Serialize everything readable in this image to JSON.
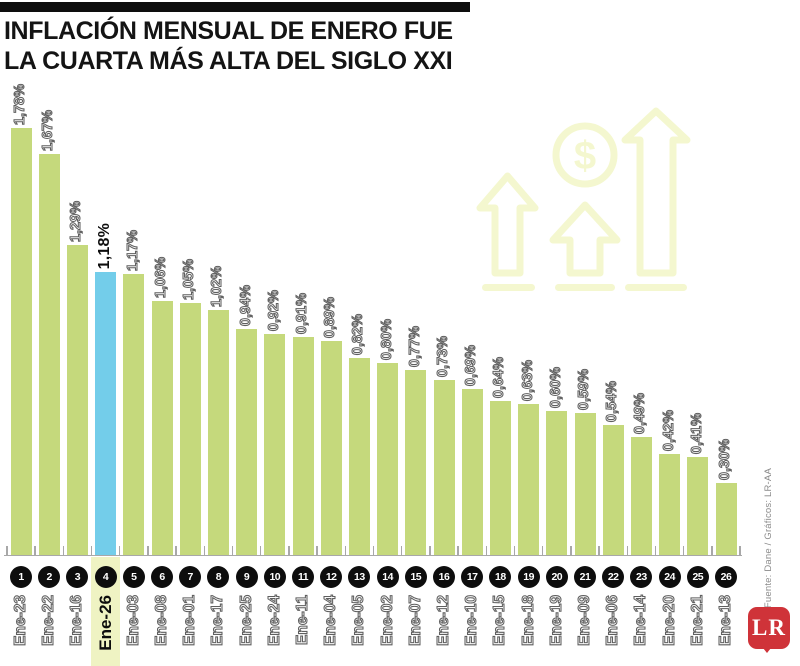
{
  "header": {
    "title_line1": "INFLACIÓN MENSUAL DE ENERO FUE",
    "title_line2": "LA CUARTA MÁS ALTA DEL SIGLO XXI"
  },
  "chart_data": {
    "type": "bar",
    "title": "INFLACIÓN MENSUAL DE ENERO FUE LA CUARTA MÁS ALTA DEL SIGLO XXI",
    "unit": "%",
    "decimal_style": "comma",
    "categories": [
      "Ene-23",
      "Ene-22",
      "Ene-16",
      "Ene-26",
      "Ene-03",
      "Ene-08",
      "Ene-01",
      "Ene-17",
      "Ene-25",
      "Ene-24",
      "Ene-11",
      "Ene-04",
      "Ene-05",
      "Ene-02",
      "Ene-07",
      "Ene-12",
      "Ene-10",
      "Ene-15",
      "Ene-18",
      "Ene-19",
      "Ene-09",
      "Ene-06",
      "Ene-14",
      "Ene-20",
      "Ene-21",
      "Ene-13"
    ],
    "values": [
      1.78,
      1.67,
      1.29,
      1.18,
      1.17,
      1.06,
      1.05,
      1.02,
      0.94,
      0.92,
      0.91,
      0.89,
      0.82,
      0.8,
      0.77,
      0.73,
      0.69,
      0.64,
      0.63,
      0.6,
      0.59,
      0.54,
      0.49,
      0.42,
      0.41,
      0.3
    ],
    "value_labels": [
      "1,78%",
      "1,67%",
      "1,29%",
      "1,18%",
      "1,17%",
      "1,06%",
      "1,05%",
      "1,02%",
      "0,94%",
      "0,92%",
      "0,91%",
      "0,89%",
      "0,82%",
      "0,80%",
      "0,77%",
      "0,73%",
      "0,69%",
      "0,64%",
      "0,63%",
      "0,60%",
      "0,59%",
      "0,54%",
      "0,49%",
      "0,42%",
      "0,41%",
      "0,30%"
    ],
    "ranks": [
      1,
      2,
      3,
      4,
      5,
      6,
      7,
      8,
      9,
      10,
      11,
      12,
      13,
      14,
      15,
      16,
      17,
      18,
      19,
      20,
      21,
      22,
      23,
      24,
      25,
      26
    ],
    "highlight_index": 3,
    "highlight_category": "Ene-26",
    "highlight_value_label": "1,18%",
    "ylim": [
      0,
      1.9
    ],
    "grid": false,
    "legend": false,
    "bar_color": "#c5d97c",
    "highlight_bar_color": "#73cdea",
    "highlight_band_color": "#eff3c3"
  },
  "watermark": {
    "icons": [
      "arrow-up-icon",
      "arrow-up-icon",
      "arrow-up-icon",
      "dollar-coin-icon"
    ],
    "dollar_glyph": "$",
    "color": "#f4f7cf"
  },
  "source": {
    "credit": "Fuente: Dane / Gráficos: LR-AA",
    "logo": "LR",
    "logo_color": "#cf3339"
  }
}
